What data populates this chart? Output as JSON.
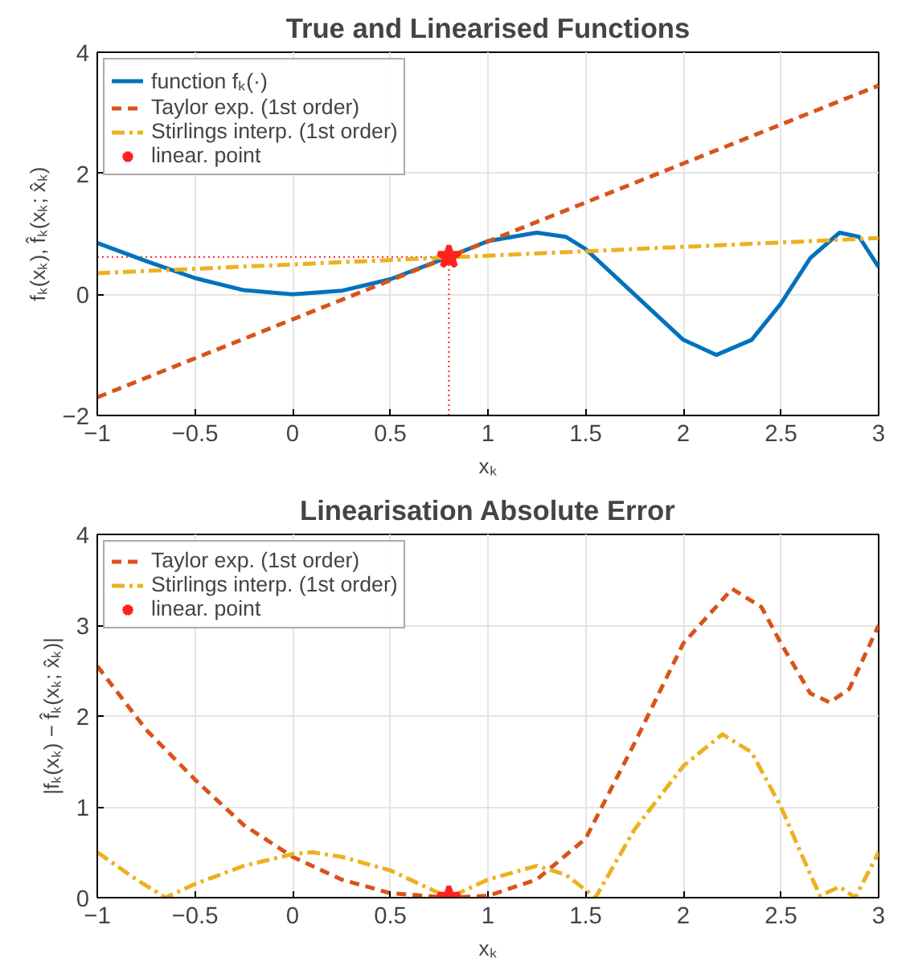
{
  "chart_data": [
    {
      "type": "line",
      "title": "True and Linearised Functions",
      "xlabel": "xₖ",
      "ylabel": "fₖ(xₖ), f̂ₖ(xₖ; x̂ₖ)",
      "xlim": [
        -1,
        3
      ],
      "ylim": [
        -2,
        4
      ],
      "xticks": [
        -1,
        -0.5,
        0,
        0.5,
        1,
        1.5,
        2,
        2.5,
        3
      ],
      "yticks": [
        -2,
        0,
        2,
        4
      ],
      "grid": true,
      "legend": "top left",
      "series": [
        {
          "name": "function fₖ(·)",
          "color": "#0072bd",
          "line_style": "solid",
          "x": [
            -1,
            -0.75,
            -0.5,
            -0.25,
            0,
            0.25,
            0.5,
            0.8,
            1.0,
            1.25,
            1.4,
            1.5,
            1.75,
            2.0,
            2.17,
            2.35,
            2.5,
            2.65,
            2.8,
            2.9,
            3.0
          ],
          "values": [
            0.85,
            0.55,
            0.27,
            0.07,
            0.0,
            0.06,
            0.25,
            0.62,
            0.88,
            1.02,
            0.95,
            0.75,
            0.0,
            -0.75,
            -1.0,
            -0.75,
            -0.15,
            0.6,
            1.02,
            0.95,
            0.45
          ]
        },
        {
          "name": "Taylor exp. (1st order)",
          "color": "#d95319",
          "line_style": "dashed",
          "x": [
            -1,
            3
          ],
          "values": [
            -1.7,
            3.45
          ]
        },
        {
          "name": "Stirlings interp. (1st order)",
          "color": "#edb120",
          "line_style": "dashdot",
          "x": [
            -1,
            3
          ],
          "values": [
            0.35,
            0.93
          ]
        },
        {
          "name": "linear. point",
          "type": "scatter",
          "marker": "star",
          "color": "#ff2020",
          "x": [
            0.8
          ],
          "values": [
            0.62
          ]
        }
      ],
      "ref_lines": [
        {
          "axis": "x",
          "value": 0.8,
          "color": "#ff2020",
          "line_style": "dotted"
        },
        {
          "axis": "y",
          "value": 0.62,
          "color": "#ff2020",
          "line_style": "dotted"
        }
      ]
    },
    {
      "type": "line",
      "title": "Linearisation Absolute Error",
      "xlabel": "xₖ",
      "ylabel": "|fₖ(xₖ) − f̂ₖ(xₖ; x̂ₖ)|",
      "xlim": [
        -1,
        3
      ],
      "ylim": [
        0,
        4
      ],
      "xticks": [
        -1,
        -0.5,
        0,
        0.5,
        1,
        1.5,
        2,
        2.5,
        3
      ],
      "yticks": [
        0,
        1,
        2,
        3,
        4
      ],
      "grid": true,
      "legend": "top left",
      "series": [
        {
          "name": "Taylor exp. (1st order)",
          "color": "#d95319",
          "line_style": "dashed",
          "x": [
            -1,
            -0.75,
            -0.5,
            -0.25,
            0,
            0.25,
            0.5,
            0.8,
            1.0,
            1.25,
            1.5,
            1.75,
            2.0,
            2.25,
            2.4,
            2.5,
            2.65,
            2.75,
            2.85,
            3.0
          ],
          "values": [
            2.55,
            1.85,
            1.3,
            0.8,
            0.45,
            0.2,
            0.05,
            0,
            0.02,
            0.2,
            0.65,
            1.7,
            2.8,
            3.4,
            3.2,
            2.8,
            2.25,
            2.15,
            2.3,
            3.0
          ]
        },
        {
          "name": "Stirlings interp. (1st order)",
          "color": "#edb120",
          "line_style": "dashdot",
          "x": [
            -1,
            -0.8,
            -0.65,
            -0.5,
            -0.25,
            0,
            0.1,
            0.25,
            0.5,
            0.8,
            1.0,
            1.25,
            1.4,
            1.55,
            1.75,
            2.0,
            2.2,
            2.35,
            2.5,
            2.6,
            2.7,
            2.8,
            2.88,
            3.0
          ],
          "values": [
            0.5,
            0.2,
            0.0,
            0.15,
            0.35,
            0.48,
            0.5,
            0.45,
            0.3,
            0.0,
            0.2,
            0.35,
            0.25,
            0.0,
            0.75,
            1.45,
            1.8,
            1.6,
            1.0,
            0.5,
            0.02,
            0.12,
            0.0,
            0.5
          ]
        },
        {
          "name": "linear. point",
          "type": "scatter",
          "marker": "star",
          "color": "#ff2020",
          "x": [
            0.8
          ],
          "values": [
            0
          ]
        }
      ]
    }
  ]
}
